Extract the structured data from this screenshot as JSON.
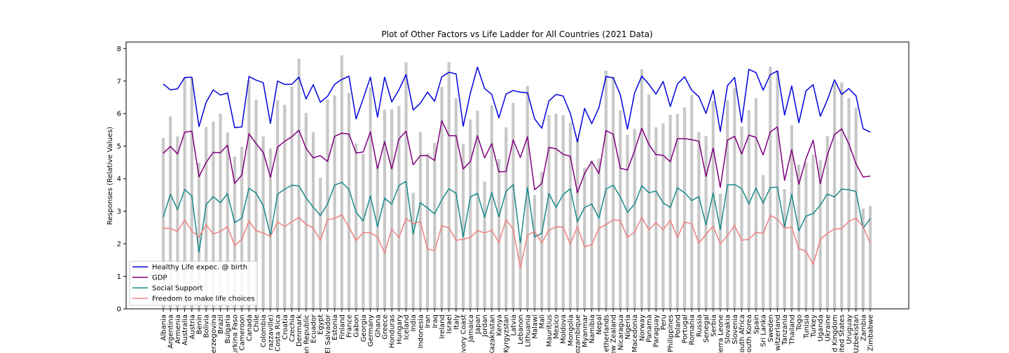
{
  "chart_data": {
    "type": "bar+line",
    "title": "Plot of Other Factors vs Life Ladder for All Countries (2021 Data)",
    "xlabel": "",
    "ylabel": "Responses (Relative Values)",
    "ylim": [
      0,
      8.2
    ],
    "yticks": [
      0,
      1,
      2,
      3,
      4,
      5,
      6,
      7,
      8
    ],
    "grid": false,
    "legend_position": "lower-left",
    "categories": [
      "Albania",
      "Argentina",
      "Armenia",
      "Australia",
      "Austria",
      "Benin",
      "Bolivia",
      "Bosnia and Herzegovina",
      "Brazil",
      "Bulgaria",
      "Burkina Faso",
      "Cameroon",
      "Canada",
      "Chile",
      "Colombia",
      "Congo (Brazzaville)",
      "Costa Rica",
      "Croatia",
      "Czechia",
      "Denmark",
      "Dominican Republic",
      "Ecuador",
      "Egypt",
      "El Salvador",
      "Estonia",
      "Finland",
      "France",
      "Gabon",
      "Georgia",
      "Germany",
      "Ghana",
      "Greece",
      "Honduras",
      "Hungary",
      "Iceland",
      "India",
      "Indonesia",
      "Iran",
      "Iraq",
      "Ireland",
      "Israel",
      "Italy",
      "Ivory Coast",
      "Jamaica",
      "Japan",
      "Jordan",
      "Kazakhstan",
      "Kenya",
      "Kyrgyzstan",
      "Latvia",
      "Lebanon",
      "Lithuania",
      "Malawi",
      "Mali",
      "Mauritius",
      "Mexico",
      "Moldova",
      "Mongolia",
      "Mozambique",
      "Myanmar",
      "Namibia",
      "Nepal",
      "Netherlands",
      "New Zealand",
      "Nicaragua",
      "Nigeria",
      "North Macedonia",
      "Norway",
      "Panama",
      "Paraguay",
      "Peru",
      "Philippines",
      "Poland",
      "Portugal",
      "Romania",
      "Russia",
      "Senegal",
      "Serbia",
      "Sierra Leone",
      "Slovakia",
      "Slovenia",
      "South Africa",
      "South Korea",
      "Spain",
      "Sri Lanka",
      "Sweden",
      "Switzerland",
      "Tanzania",
      "Thailand",
      "Togo",
      "Tunisia",
      "Turkey",
      "Uganda",
      "Ukraine",
      "United Kingdom",
      "United States",
      "Uruguay",
      "Uzbekistan",
      "Zambia",
      "Zimbabwe"
    ],
    "bars": {
      "name": "Life Ladder",
      "color": "#c8c8c8",
      "values": [
        5.25,
        5.91,
        5.3,
        7.11,
        7.08,
        4.49,
        5.59,
        5.75,
        6.0,
        5.42,
        4.68,
        4.98,
        7.03,
        6.43,
        5.3,
        4.93,
        6.41,
        6.27,
        6.83,
        7.69,
        6.02,
        5.43,
        4.03,
        6.44,
        6.56,
        7.79,
        6.64,
        5.08,
        4.77,
        6.81,
        4.38,
        6.12,
        6.13,
        6.24,
        7.57,
        3.56,
        5.44,
        4.77,
        5.1,
        6.82,
        7.58,
        6.48,
        5.06,
        5.82,
        6.09,
        3.91,
        6.26,
        4.6,
        5.58,
        6.33,
        2.18,
        6.85,
        3.5,
        4.21,
        5.96,
        6.0,
        5.95,
        5.72,
        5.23,
        4.34,
        4.56,
        4.62,
        7.32,
        7.14,
        6.1,
        5.35,
        5.53,
        7.36,
        6.59,
        5.58,
        5.7,
        5.96,
        5.99,
        6.19,
        6.57,
        5.44,
        5.32,
        6.39,
        3.54,
        6.41,
        6.78,
        5.6,
        6.11,
        6.47,
        4.11,
        7.44,
        7.33,
        3.68,
        5.65,
        4.43,
        4.5,
        4.74,
        4.57,
        5.31,
        6.94,
        6.96,
        6.48,
        6.19,
        3.08,
        3.16
      ]
    },
    "series": [
      {
        "name": "Healthy Life expec. @ birth",
        "color": "#0000dd",
        "values": [
          6.91,
          6.73,
          6.76,
          7.11,
          7.12,
          5.6,
          6.35,
          6.73,
          6.57,
          6.63,
          5.57,
          5.59,
          7.14,
          7.03,
          6.95,
          5.7,
          7.0,
          6.9,
          6.9,
          7.12,
          6.45,
          6.89,
          6.35,
          6.53,
          6.9,
          7.05,
          7.15,
          5.84,
          6.46,
          7.12,
          5.89,
          7.12,
          6.36,
          6.73,
          7.2,
          6.11,
          6.32,
          6.66,
          6.38,
          7.13,
          7.27,
          7.22,
          5.61,
          6.63,
          7.43,
          6.77,
          6.59,
          5.87,
          6.6,
          6.71,
          6.66,
          6.64,
          5.84,
          5.55,
          6.39,
          6.59,
          6.54,
          6.01,
          5.13,
          6.16,
          5.69,
          6.18,
          7.14,
          7.1,
          6.58,
          5.52,
          6.64,
          7.15,
          6.9,
          6.6,
          6.99,
          6.22,
          6.91,
          7.13,
          6.72,
          6.52,
          6.01,
          6.72,
          5.45,
          6.86,
          7.11,
          5.73,
          7.36,
          7.26,
          6.72,
          7.2,
          7.31,
          5.96,
          6.85,
          5.72,
          6.7,
          6.89,
          5.92,
          6.42,
          7.04,
          6.59,
          6.77,
          6.55,
          5.54,
          5.43
        ]
      },
      {
        "name": "GDP",
        "color": "#800080",
        "values": [
          4.78,
          4.99,
          4.76,
          5.43,
          5.46,
          4.06,
          4.5,
          4.81,
          4.8,
          5.03,
          3.86,
          4.11,
          5.38,
          5.08,
          4.81,
          4.05,
          4.97,
          5.15,
          5.29,
          5.49,
          4.93,
          4.64,
          4.71,
          4.53,
          5.3,
          5.4,
          5.37,
          4.79,
          4.82,
          5.44,
          4.31,
          5.14,
          4.3,
          5.22,
          5.46,
          4.43,
          4.71,
          4.71,
          4.56,
          5.78,
          5.32,
          5.32,
          4.3,
          4.53,
          5.32,
          4.64,
          5.08,
          4.21,
          4.22,
          5.19,
          4.65,
          5.29,
          3.66,
          3.85,
          4.96,
          4.92,
          4.75,
          4.69,
          3.57,
          4.16,
          4.53,
          4.16,
          5.48,
          5.37,
          4.32,
          4.27,
          4.86,
          5.55,
          5.05,
          4.74,
          4.72,
          4.52,
          5.23,
          5.23,
          5.2,
          5.15,
          4.07,
          4.94,
          3.73,
          5.19,
          5.3,
          4.76,
          5.34,
          5.27,
          4.73,
          5.44,
          5.59,
          3.95,
          4.89,
          3.83,
          4.62,
          5.18,
          3.85,
          4.73,
          5.36,
          5.53,
          5.07,
          4.46,
          4.05,
          4.08
        ]
      },
      {
        "name": "Social Support",
        "color": "#1a8a8a",
        "values": [
          2.82,
          3.52,
          3.05,
          3.67,
          3.47,
          1.74,
          3.2,
          3.45,
          3.26,
          3.54,
          2.65,
          2.79,
          3.71,
          3.56,
          3.17,
          2.26,
          3.52,
          3.68,
          3.8,
          3.78,
          3.41,
          3.13,
          2.87,
          3.22,
          3.8,
          3.89,
          3.67,
          2.97,
          2.7,
          3.47,
          2.53,
          3.4,
          3.22,
          3.79,
          3.92,
          2.3,
          3.26,
          3.1,
          2.92,
          3.35,
          3.69,
          3.55,
          2.21,
          3.44,
          3.55,
          2.82,
          3.57,
          2.83,
          3.61,
          3.82,
          2.03,
          3.73,
          2.21,
          2.32,
          3.54,
          3.12,
          3.51,
          3.69,
          2.68,
          3.12,
          3.22,
          2.79,
          3.68,
          3.8,
          3.44,
          2.97,
          3.22,
          3.78,
          3.57,
          3.62,
          3.26,
          3.12,
          3.72,
          3.57,
          3.33,
          3.45,
          2.58,
          3.56,
          2.44,
          3.81,
          3.82,
          3.7,
          3.23,
          3.71,
          3.25,
          3.73,
          3.74,
          2.52,
          3.52,
          2.4,
          2.85,
          2.93,
          3.19,
          3.53,
          3.44,
          3.68,
          3.66,
          3.61,
          2.48,
          2.77
        ]
      },
      {
        "name": "Freedom to make life choices",
        "color": "#f08080",
        "values": [
          2.48,
          2.47,
          2.38,
          2.73,
          2.39,
          2.21,
          2.58,
          2.3,
          2.38,
          2.53,
          1.94,
          2.14,
          2.7,
          2.4,
          2.33,
          2.23,
          2.67,
          2.53,
          2.67,
          2.81,
          2.6,
          2.49,
          2.1,
          2.74,
          2.78,
          2.89,
          2.51,
          2.1,
          2.34,
          2.34,
          2.21,
          1.72,
          2.45,
          2.19,
          2.78,
          2.62,
          2.68,
          1.84,
          1.79,
          2.56,
          2.49,
          2.11,
          2.14,
          2.19,
          2.41,
          2.33,
          2.42,
          2.04,
          2.74,
          2.45,
          1.27,
          2.26,
          2.38,
          2.03,
          2.42,
          2.52,
          2.51,
          1.99,
          2.52,
          1.91,
          1.97,
          2.47,
          2.59,
          2.74,
          2.71,
          2.2,
          2.36,
          2.81,
          2.43,
          2.65,
          2.43,
          2.72,
          2.2,
          2.67,
          2.61,
          2.02,
          2.29,
          2.54,
          2.0,
          2.25,
          2.56,
          2.11,
          2.14,
          2.35,
          2.32,
          2.87,
          2.76,
          2.48,
          2.51,
          1.85,
          1.77,
          1.36,
          2.13,
          2.32,
          2.46,
          2.46,
          2.69,
          2.79,
          2.52,
          2.02
        ]
      }
    ],
    "tick_labels": [
      "Albania",
      "Argentina",
      "Armenia",
      "Australia",
      "Austria",
      "Benin",
      "Bolivia",
      "erzegovina",
      "Brazil",
      "Bulgaria",
      "urkina Faso",
      "Cameroon",
      "Canada",
      "Chile",
      "Colombia",
      "razzaville)",
      "Costa Rica",
      "Croatia",
      "Czechia",
      "Denmark",
      "an Republic",
      "Ecuador",
      "Egypt",
      "El Salvador",
      "Estonia",
      "Finland",
      "France",
      "Gabon",
      "Georgia",
      "Germany",
      "Ghana",
      "Greece",
      "Honduras",
      "Hungary",
      "Iceland",
      "India",
      "Indonesia",
      "Iran",
      "Iraq",
      "Ireland",
      "Israel",
      "Italy",
      "Ivory Coast",
      "Jamaica",
      "Japan",
      "Jordan",
      "Kazakhstan",
      "Kenya",
      "Kyrgyzstan",
      "Latvia",
      "Lebanon",
      "Lithuania",
      "Malawi",
      "Mali",
      "Mauritius",
      "Mexico",
      "Moldova",
      "Mongolia",
      "ozambique",
      "Myanmar",
      "Namibia",
      "Nepal",
      "etherlands",
      "ew Zealand",
      "Nicaragua",
      "Nigeria",
      "Macedonia",
      "Norway",
      "Panama",
      "Paraguay",
      "Peru",
      "Philippines",
      "Poland",
      "Portugal",
      "Romania",
      "Russia",
      "Senegal",
      "Serbia",
      "ierra Leone",
      "Slovakia",
      "Slovenia",
      "outh Africa",
      "outh Korea",
      "Spain",
      "Sri Lanka",
      "Sweden",
      "witzerland",
      "Tanzania",
      "Thailand",
      "Togo",
      "Tunisia",
      "Turkey",
      "Uganda",
      "Ukraine",
      "d Kingdom",
      "nited States",
      "Uruguay",
      "Uzbekistan",
      "Zambia",
      "Zimbabwe"
    ]
  }
}
